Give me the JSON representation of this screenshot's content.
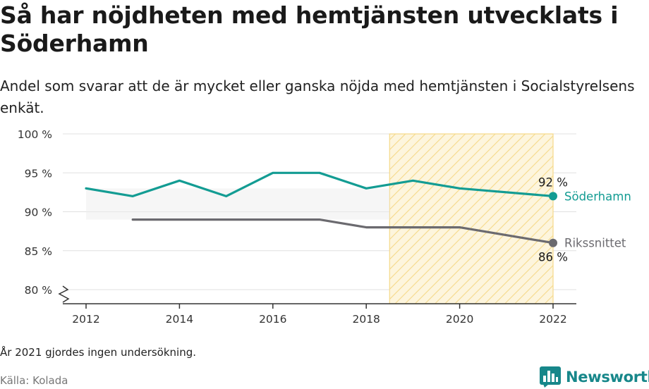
{
  "title": "Så har nöjdheten med hemtjänsten utvecklats i Söderhamn",
  "subtitle": "Andel som svarar att de är mycket eller ganska nöjda med hemtjänsten i Socialstyrelsens enkät.",
  "note": "År 2021 gjordes ingen undersökning.",
  "source": "Källa: Kolada",
  "brand": "Newsworthy",
  "chart_data": {
    "type": "line",
    "title": "Så har nöjdheten med hemtjänsten utvecklats i Söderhamn",
    "ylabel": "",
    "xlabel": "",
    "ylim": [
      80,
      100
    ],
    "xlim": [
      2011.5,
      2022.5
    ],
    "y_ticks": [
      80,
      85,
      90,
      95,
      100
    ],
    "y_tick_labels": [
      "80 %",
      "85 %",
      "90 %",
      "95 %",
      "100 %"
    ],
    "x_ticks": [
      2012,
      2014,
      2016,
      2018,
      2020,
      2022
    ],
    "x_tick_labels": [
      "2012",
      "2014",
      "2016",
      "2018",
      "2020",
      "2022"
    ],
    "grid": true,
    "axis_break": true,
    "highlight_range": [
      2018.5,
      2022
    ],
    "series": [
      {
        "name": "Söderhamn",
        "color": "#139c93",
        "x": [
          2012,
          2013,
          2014,
          2015,
          2016,
          2017,
          2018,
          2019,
          2020,
          2022
        ],
        "values": [
          93,
          92,
          94,
          92,
          95,
          95,
          93,
          94,
          93,
          92
        ],
        "end_label": "92 %"
      },
      {
        "name": "Rikssnittet",
        "color": "#6b6a6f",
        "x": [
          2013,
          2014,
          2015,
          2016,
          2017,
          2018,
          2019,
          2020,
          2022
        ],
        "values": [
          89,
          89,
          89,
          89,
          89,
          88,
          88,
          88,
          86
        ],
        "end_label": "86 %"
      }
    ]
  }
}
